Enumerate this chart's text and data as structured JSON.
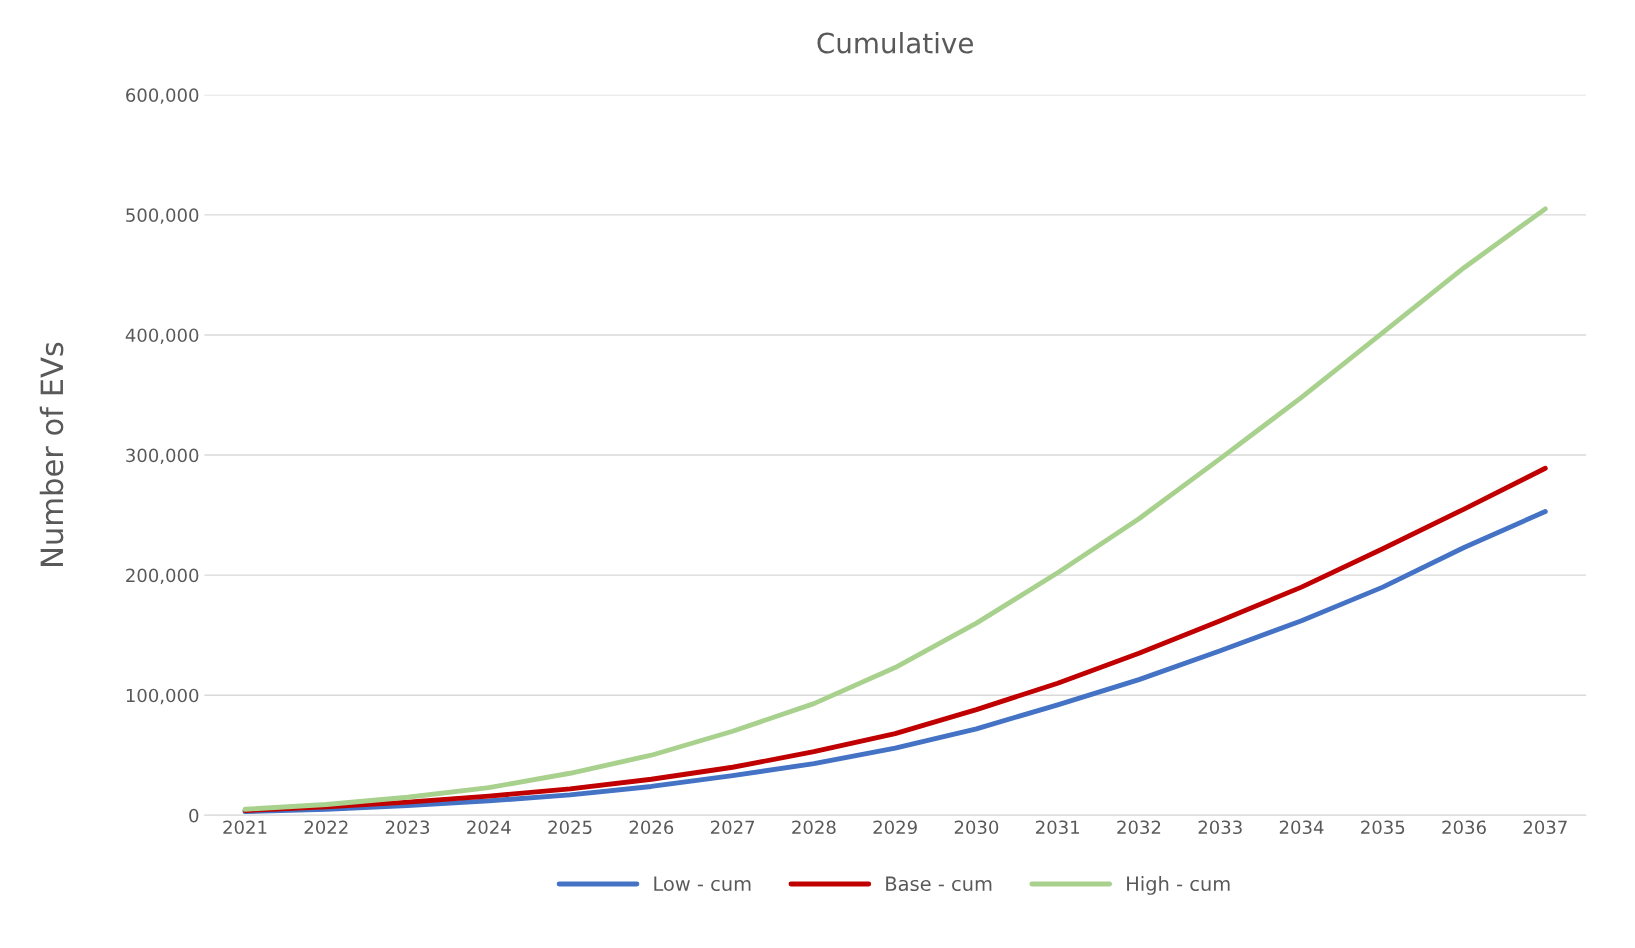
{
  "chart_data": {
    "type": "line",
    "title": "Cumulative",
    "ylabel": "Number of EVs",
    "categories": [
      "2021",
      "2022",
      "2023",
      "2024",
      "2025",
      "2026",
      "2027",
      "2028",
      "2029",
      "2030",
      "2031",
      "2032",
      "2033",
      "2034",
      "2035",
      "2036",
      "2037"
    ],
    "series": [
      {
        "name": "Low - cum",
        "color": "#4472c4",
        "values": [
          3000,
          5000,
          8000,
          12000,
          17000,
          24000,
          33000,
          43000,
          56000,
          72000,
          92000,
          113000,
          137000,
          162000,
          190000,
          223000,
          253000
        ]
      },
      {
        "name": "Base - cum",
        "color": "#c00000",
        "values": [
          4000,
          7000,
          11000,
          16000,
          22000,
          30000,
          40000,
          53000,
          68000,
          88000,
          110000,
          135000,
          162000,
          190000,
          222000,
          255000,
          289000
        ]
      },
      {
        "name": "High - cum",
        "color": "#a9d18e",
        "values": [
          5000,
          9000,
          15000,
          23000,
          35000,
          50000,
          70000,
          93000,
          123000,
          160000,
          202000,
          247000,
          297000,
          348000,
          402000,
          456000,
          505000
        ]
      }
    ],
    "ylim": [
      0,
      600000
    ],
    "yticks": [
      {
        "value": 0,
        "label": "0"
      },
      {
        "value": 100000,
        "label": "100,000"
      },
      {
        "value": 200000,
        "label": "200,000"
      },
      {
        "value": 300000,
        "label": "300,000"
      },
      {
        "value": 400000,
        "label": "400,000"
      },
      {
        "value": 500000,
        "label": "500,000"
      },
      {
        "value": 600000,
        "label": "600,000"
      }
    ],
    "grid": "y",
    "legend": "bottom",
    "marker": "none",
    "line_style": "solid"
  }
}
